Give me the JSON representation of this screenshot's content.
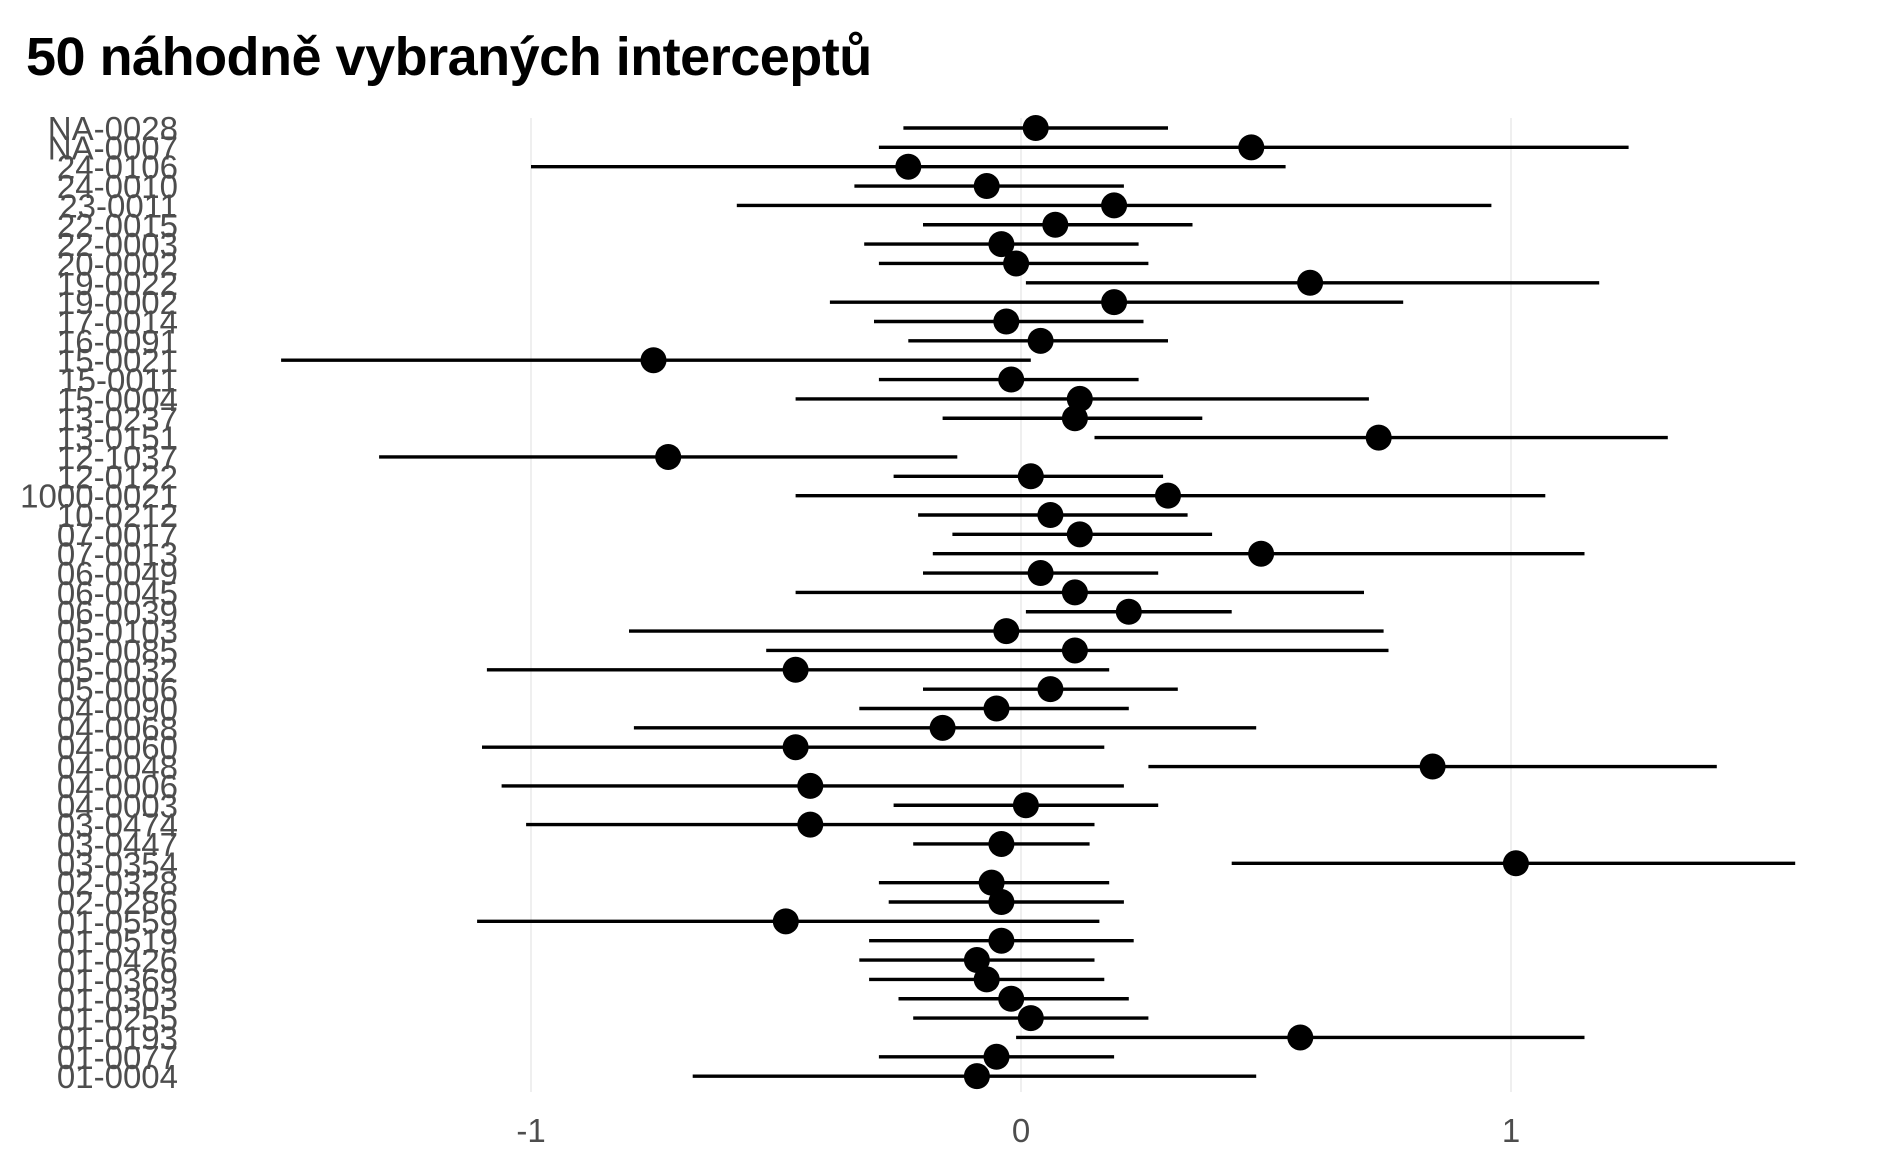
{
  "title": "50 náhodně vybraných interceptů",
  "chart_data": {
    "type": "scatter",
    "subtype": "pointrange",
    "title": "50 náhodně vybraných interceptů",
    "xlabel": "",
    "ylabel": "",
    "xlim": [
      -1.98,
      1.66
    ],
    "x_ticks": [
      -1,
      0,
      1
    ],
    "x_tick_labels": [
      "-1",
      "0",
      "1"
    ],
    "grid": "vertical major",
    "legend": "none",
    "colors": {
      "point": "#000000",
      "line": "#000000",
      "grid": "#ebebeb",
      "axis_text": "#4d4d4d"
    },
    "categories": [
      "NA-0028",
      "NA-0007",
      "24-0106",
      "24-0010",
      "23-0011",
      "22-0015",
      "22-0003",
      "20-0002",
      "19-0022",
      "19-0002",
      "17-0014",
      "16-0091",
      "15-0021",
      "15-0011",
      "15-0004",
      "13-0237",
      "13-0151",
      "12-1037",
      "12-0122",
      "1000-0021",
      "10-0212",
      "07-0017",
      "07-0013",
      "06-0049",
      "06-0045",
      "06-0039",
      "05-0103",
      "05-0085",
      "05-0032",
      "05-0006",
      "04-0090",
      "04-0068",
      "04-0060",
      "04-0048",
      "04-0006",
      "04-0003",
      "03-0474",
      "03-0447",
      "03-0354",
      "02-0328",
      "02-0286",
      "01-0559",
      "01-0519",
      "01-0426",
      "01-0369",
      "01-0303",
      "01-0255",
      "01-0193",
      "01-0077",
      "01-0004"
    ],
    "series": [
      {
        "estimate": [
          0.03,
          0.47,
          -0.23,
          -0.07,
          0.19,
          0.07,
          -0.04,
          -0.01,
          0.59,
          0.19,
          -0.03,
          0.04,
          -0.75,
          -0.02,
          0.12,
          0.11,
          0.73,
          -0.72,
          0.02,
          0.3,
          0.06,
          0.12,
          0.49,
          0.04,
          0.11,
          0.22,
          -0.03,
          0.11,
          -0.46,
          0.06,
          -0.05,
          -0.16,
          -0.46,
          0.84,
          -0.43,
          0.01,
          -0.43,
          -0.04,
          1.01,
          -0.06,
          -0.04,
          -0.48,
          -0.04,
          -0.09,
          -0.07,
          -0.02,
          0.02,
          0.57,
          -0.05,
          -0.09
        ],
        "lower": [
          -0.24,
          -0.29,
          -1.0,
          -0.34,
          -0.58,
          -0.2,
          -0.32,
          -0.29,
          0.01,
          -0.39,
          -0.3,
          -0.23,
          -1.51,
          -0.29,
          -0.46,
          -0.16,
          0.15,
          -1.31,
          -0.26,
          -0.46,
          -0.21,
          -0.14,
          -0.18,
          -0.2,
          -0.46,
          0.01,
          -0.8,
          -0.52,
          -1.09,
          -0.2,
          -0.33,
          -0.79,
          -1.1,
          0.26,
          -1.06,
          -0.26,
          -1.01,
          -0.22,
          0.43,
          -0.29,
          -0.27,
          -1.11,
          -0.31,
          -0.33,
          -0.31,
          -0.25,
          -0.22,
          -0.01,
          -0.29,
          -0.67
        ],
        "upper": [
          0.3,
          1.24,
          0.54,
          0.21,
          0.96,
          0.35,
          0.24,
          0.26,
          1.18,
          0.78,
          0.25,
          0.3,
          0.02,
          0.24,
          0.71,
          0.37,
          1.32,
          -0.13,
          0.29,
          1.07,
          0.34,
          0.39,
          1.15,
          0.28,
          0.7,
          0.43,
          0.74,
          0.75,
          0.18,
          0.32,
          0.22,
          0.48,
          0.17,
          1.42,
          0.21,
          0.28,
          0.15,
          0.14,
          1.58,
          0.18,
          0.21,
          0.16,
          0.23,
          0.15,
          0.17,
          0.22,
          0.26,
          1.15,
          0.19,
          0.48
        ]
      }
    ]
  }
}
